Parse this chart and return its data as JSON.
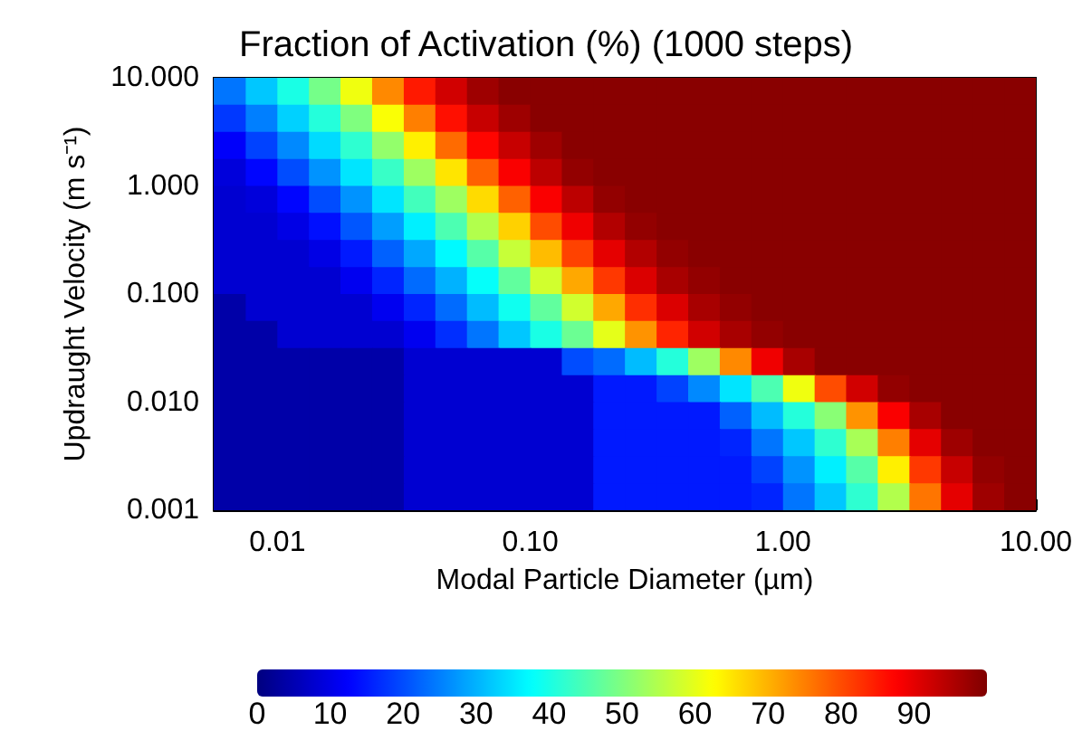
{
  "chart_data": {
    "type": "heatmap",
    "title": "Fraction of Activation (%) (1000 steps)",
    "xlabel": "Modal Particle Diameter (µm)",
    "ylabel": "Updraught Velocity (m s⁻¹)",
    "log": "xy",
    "xlim": [
      0.0056,
      10
    ],
    "xticks": [
      {
        "value": 0.01,
        "label": "0.01"
      },
      {
        "value": 0.1,
        "label": "0.10"
      },
      {
        "value": 1,
        "label": "1.00"
      },
      {
        "value": 10,
        "label": "10.00"
      }
    ],
    "ylim": [
      0.001,
      10
    ],
    "yticks": [
      {
        "value": 0.001,
        "label": "0.001"
      },
      {
        "value": 0.01,
        "label": "0.010"
      },
      {
        "value": 0.1,
        "label": "0.100"
      },
      {
        "value": 1,
        "label": "1.000"
      },
      {
        "value": 10,
        "label": "10.000"
      }
    ],
    "clim": [
      0,
      100
    ],
    "cticks": [
      0,
      10,
      20,
      30,
      40,
      50,
      60,
      70,
      80,
      90
    ],
    "x": [
      0.00649,
      0.00866,
      0.01155,
      0.0154,
      0.0205,
      0.0274,
      0.0365,
      0.0487,
      0.0649,
      0.0866,
      0.1155,
      0.154,
      0.205,
      0.274,
      0.365,
      0.487,
      0.649,
      0.866,
      1.155,
      1.54,
      2.05,
      2.74,
      3.65,
      4.87,
      6.49,
      8.66
    ],
    "y": [
      7.5,
      4.22,
      2.37,
      1.33,
      0.75,
      0.422,
      0.237,
      0.133,
      0.075,
      0.0422,
      0.0237,
      0.0133,
      0.0075,
      0.00422,
      0.00237,
      0.00133
    ],
    "cells": [
      [
        24,
        32,
        40,
        49,
        61,
        74,
        85,
        92,
        97,
        99,
        99,
        99,
        99,
        99,
        99,
        99,
        99,
        99,
        99,
        99,
        99,
        99,
        99,
        99,
        99,
        99
      ],
      [
        18,
        25,
        33,
        41,
        50,
        62,
        75,
        86,
        93,
        97,
        99,
        99,
        99,
        99,
        99,
        99,
        99,
        99,
        99,
        99,
        99,
        99,
        99,
        99,
        99,
        99
      ],
      [
        12,
        19,
        26,
        34,
        42,
        52,
        64,
        77,
        87,
        93,
        97,
        99,
        99,
        99,
        99,
        99,
        99,
        99,
        99,
        99,
        99,
        99,
        99,
        99,
        99,
        99
      ],
      [
        9,
        13,
        20,
        27,
        35,
        43,
        53,
        65,
        78,
        88,
        94,
        98,
        99,
        99,
        99,
        99,
        99,
        99,
        99,
        99,
        99,
        99,
        99,
        99,
        99,
        99
      ],
      [
        8,
        9,
        13,
        20,
        27,
        35,
        44,
        53,
        66,
        78,
        88,
        94,
        98,
        99,
        99,
        99,
        99,
        99,
        99,
        99,
        99,
        99,
        99,
        99,
        99,
        99
      ],
      [
        8,
        8,
        10,
        14,
        21,
        28,
        36,
        45,
        55,
        67,
        80,
        89,
        95,
        98,
        99,
        99,
        99,
        99,
        99,
        99,
        99,
        99,
        99,
        99,
        99,
        99
      ],
      [
        8,
        8,
        8,
        10,
        15,
        22,
        29,
        37,
        46,
        57,
        69,
        81,
        90,
        95,
        98,
        99,
        99,
        99,
        99,
        99,
        99,
        99,
        99,
        99,
        99,
        99
      ],
      [
        8,
        8,
        8,
        8,
        11,
        16,
        23,
        30,
        38,
        47,
        58,
        71,
        82,
        91,
        96,
        98,
        99,
        99,
        99,
        99,
        99,
        99,
        99,
        99,
        99,
        99
      ],
      [
        4,
        8,
        8,
        8,
        8,
        11,
        16,
        23,
        31,
        39,
        47,
        58,
        71,
        83,
        91,
        96,
        98,
        99,
        99,
        99,
        99,
        99,
        99,
        99,
        99,
        99
      ],
      [
        4,
        4,
        8,
        8,
        8,
        8,
        11,
        17,
        24,
        32,
        40,
        48,
        60,
        73,
        84,
        92,
        96,
        98,
        99,
        99,
        99,
        99,
        99,
        99,
        99,
        99
      ],
      [
        4,
        4,
        4,
        4,
        4,
        4,
        8,
        8,
        8,
        8,
        8,
        20,
        23,
        31,
        41,
        53,
        74,
        89,
        96,
        99,
        99,
        99,
        99,
        99,
        99,
        99
      ],
      [
        4,
        4,
        4,
        4,
        4,
        4,
        8,
        8,
        8,
        8,
        8,
        8,
        15,
        15,
        19,
        26,
        35,
        45,
        61,
        80,
        92,
        98,
        99,
        99,
        99,
        99
      ],
      [
        4,
        4,
        4,
        4,
        4,
        4,
        8,
        8,
        8,
        8,
        8,
        8,
        15,
        15,
        15,
        15,
        22,
        31,
        41,
        51,
        73,
        88,
        96,
        99,
        99,
        99
      ],
      [
        4,
        4,
        4,
        4,
        4,
        4,
        8,
        8,
        8,
        8,
        8,
        8,
        15,
        15,
        15,
        15,
        16,
        24,
        32,
        42,
        54,
        75,
        90,
        97,
        99,
        99
      ],
      [
        4,
        4,
        4,
        4,
        4,
        4,
        8,
        8,
        8,
        8,
        8,
        8,
        15,
        15,
        15,
        15,
        15,
        19,
        27,
        36,
        46,
        64,
        82,
        93,
        98,
        99
      ],
      [
        4,
        4,
        4,
        4,
        4,
        4,
        8,
        8,
        8,
        8,
        8,
        8,
        15,
        15,
        15,
        15,
        15,
        16,
        24,
        32,
        42,
        55,
        76,
        90,
        97,
        99
      ]
    ]
  }
}
